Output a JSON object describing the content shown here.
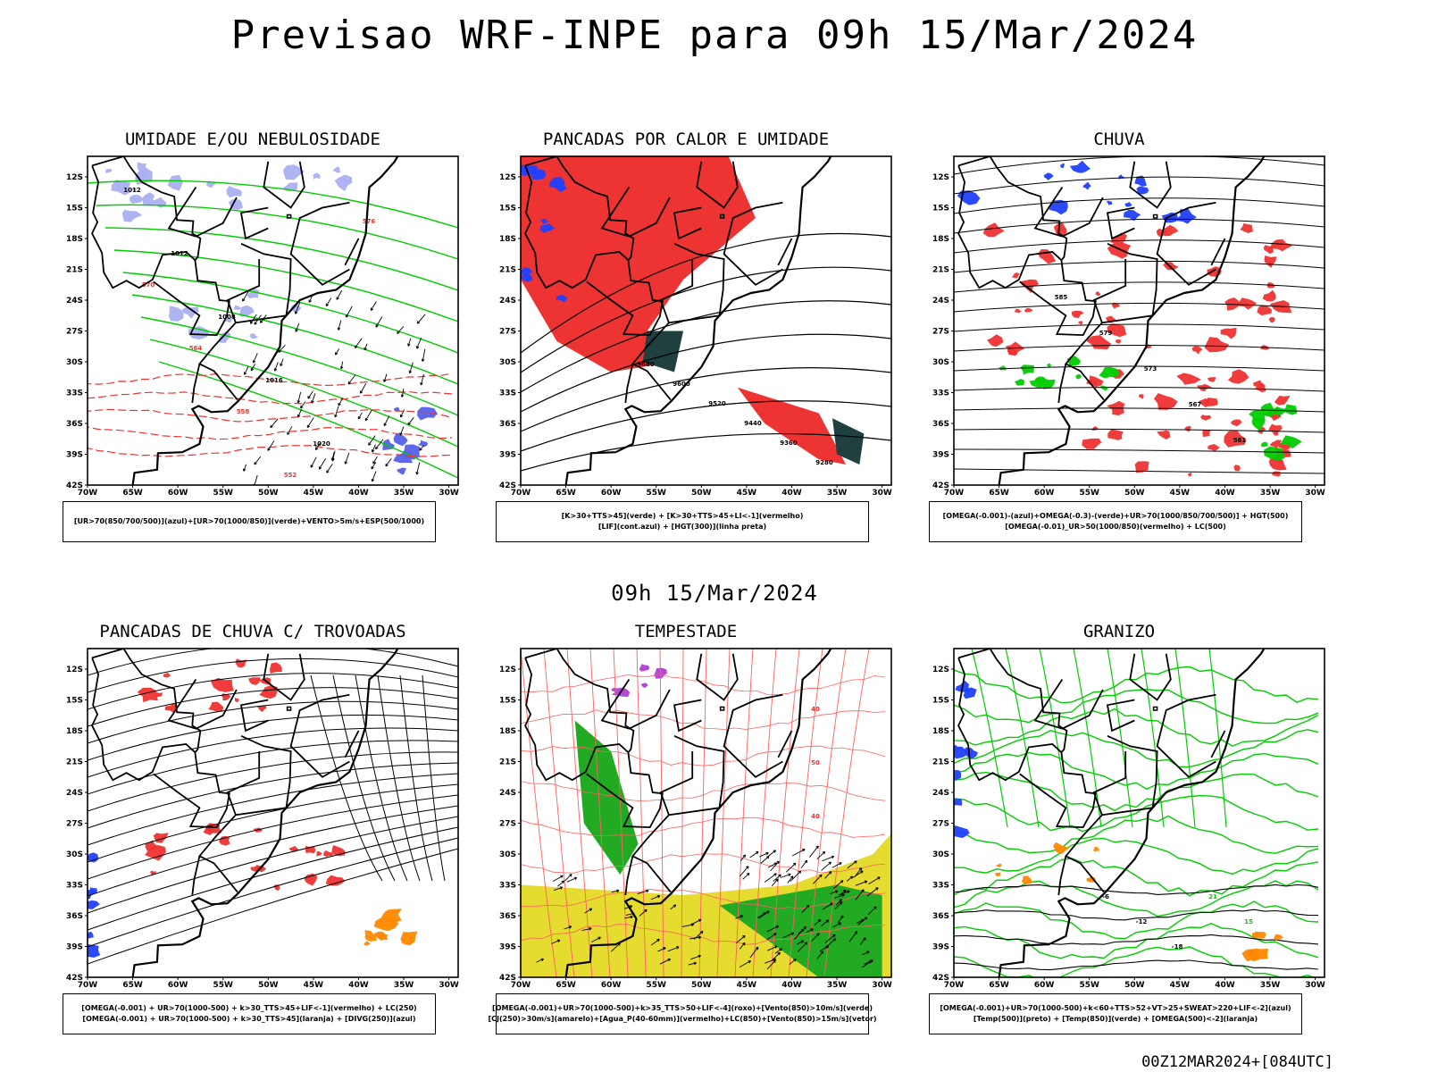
{
  "header": {
    "title": "Previsao WRF-INPE  para 09h 15/Mar/2024"
  },
  "mid_title": "09h 15/Mar/2024",
  "footer": {
    "run_label": "00Z12MAR2024+[084UTC]"
  },
  "axes": {
    "lat_labels": [
      "12S",
      "15S",
      "18S",
      "21S",
      "24S",
      "27S",
      "30S",
      "33S",
      "36S",
      "39S",
      "42S"
    ],
    "lon_labels": [
      "70W",
      "65W",
      "60W",
      "55W",
      "50W",
      "45W",
      "40W",
      "35W",
      "30W"
    ]
  },
  "colors": {
    "blue_fill": "#aab0f0",
    "blue_line": "#2040ff",
    "green": "#00cc00",
    "red": "#ee3333",
    "salmon": "#ff6060",
    "dark_teal": "#204040",
    "yellow": "#e6dc30",
    "orange": "#ff8800",
    "purple": "#b040d0"
  },
  "panels": [
    {
      "title": "UMIDADE E/OU NEBULOSIDADE",
      "legend": [
        "[UR>70(850/700/500)](azul)+[UR>70(1000/850)](verde)+VENTO>5m/s+ESP(500/1000)"
      ],
      "contour_labels": [
        "1012",
        "1012",
        "1008",
        "1016",
        "1020",
        "576",
        "570",
        "564",
        "558",
        "552"
      ]
    },
    {
      "title": "PANCADAS POR CALOR E UMIDADE",
      "legend": [
        "[K>30+TTS>45](verde) + [K>30+TTS>45+LI<-1](vermelho)",
        "[LIF](cont.azul) + [HGT(300)](linha preta)"
      ],
      "contour_labels": [
        "9680",
        "9600",
        "9520",
        "9440",
        "9360",
        "9280"
      ]
    },
    {
      "title": "CHUVA",
      "legend": [
        "[OMEGA(-0.001)-(azul)+OMEGA(-0.3)-(verde)+UR>70(1000/850/700/500)] + HGT(500)",
        "[OMEGA(-0.01)_UR>50(1000/850)(vermelho) + LC(500)"
      ],
      "contour_labels": [
        "585",
        "579",
        "573",
        "567",
        "561"
      ]
    },
    {
      "title": "PANCADAS DE CHUVA C/ TROVOADAS",
      "legend": [
        "[OMEGA(-0.001) + UR>70(1000-500) + k>30_TTS>45+LIF<-1](vermelho) + LC(250)",
        "[OMEGA(-0.001) + UR>70(1000-500) + k>30_TTS>45](laranja) + [DIVG(250)](azul)"
      ],
      "contour_labels": []
    },
    {
      "title": "TEMPESTADE",
      "legend": [
        "[OMEGA(-0.001)+UR>70(1000-500)+k>35_TTS>50+LIF<-4](roxo)+[Vento(850)>10m/s](verde)",
        "[CJ(250)>30m/s](amarelo)+[Agua_P(40-60mm)](vermelho)+LC(850)+[Vento(850)>15m/s](vetor)"
      ],
      "contour_labels": [
        "40",
        "50",
        "40"
      ]
    },
    {
      "title": "GRANIZO",
      "legend": [
        "[OMEGA(-0.001)+UR>70(1000-500)+k<60+TTS>52+VT>25+SWEAT>220+LIF<-2](azul)",
        "[Temp(500)](preto) + [Temp(850)](verde) + [OMEGA(500)<-2](laranja)"
      ],
      "contour_labels": [
        "-6",
        "-12",
        "-18",
        "21",
        "15"
      ]
    }
  ]
}
